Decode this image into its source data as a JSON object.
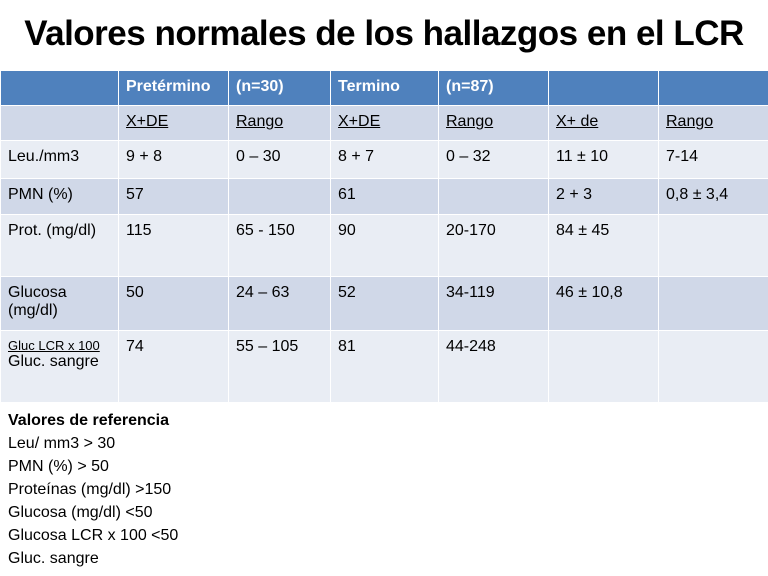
{
  "title": "Valores normales de los hallazgos en el LCR",
  "table": {
    "header": [
      null,
      "Pretérmino",
      "(n=30)",
      "Termino",
      "(n=87)",
      null,
      null
    ],
    "subheader": [
      null,
      "X+DE",
      "Rango",
      "X+DE",
      "Rango",
      "X+ de",
      "Rango"
    ],
    "rows": [
      [
        "Leu./mm3",
        "9 + 8",
        "0 – 30",
        "8 + 7",
        "0 – 32",
        "11 ± 10",
        "7-14"
      ],
      [
        "PMN (%)",
        "57",
        null,
        "61",
        null,
        "2 + 3",
        "0,8 ± 3,4"
      ],
      [
        "Prot. (mg/dl)",
        "115",
        "65 - 150",
        "90",
        "20-170",
        "84 ± 45",
        null
      ],
      [
        "Glucosa (mg/dl)",
        "50",
        "24 – 63",
        "52",
        "34-119",
        "46 ± 10,8",
        null
      ],
      [
        [
          "Gluc LCR x 100",
          "Gluc. sangre"
        ],
        "74",
        "55 – 105",
        "81",
        "44-248",
        null,
        null
      ]
    ]
  },
  "notes": {
    "title": "Valores de referencia",
    "lines": [
      "Leu/ mm3 > 30",
      "PMN (%) > 50",
      "Proteínas (mg/dl) >150",
      "Glucosa (mg/dl) <50",
      "Glucosa LCR x 100 <50",
      "Gluc. sangre"
    ]
  }
}
